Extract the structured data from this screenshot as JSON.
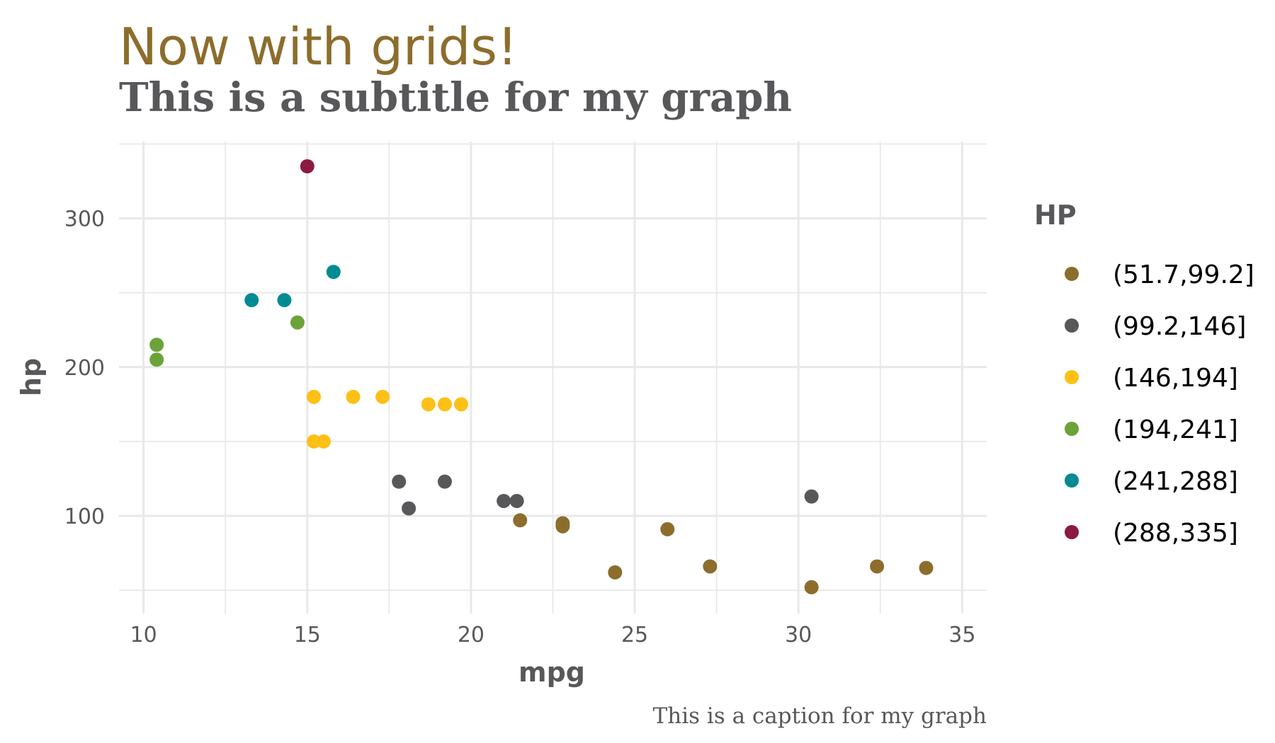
{
  "chart_data": {
    "type": "scatter",
    "title": "Now with grids!",
    "subtitle": "This is a subtitle for my graph",
    "caption": "This is a caption for my graph",
    "xlabel": "mpg",
    "ylabel": "hp",
    "xlim": [
      9.25,
      35.75
    ],
    "ylim": [
      34.35,
      351.65
    ],
    "x_ticks": [
      10,
      15,
      20,
      25,
      30,
      35
    ],
    "y_ticks": [
      100,
      200,
      300
    ],
    "grid": true,
    "legend": {
      "title": "HP",
      "placement": "right",
      "entries": [
        {
          "label": "(51.7,99.2]",
          "color": "#8c6d2c"
        },
        {
          "label": "(99.2,146]",
          "color": "#58585b"
        },
        {
          "label": "(146,194]",
          "color": "#fdc016"
        },
        {
          "label": "(194,241]",
          "color": "#6ba33a"
        },
        {
          "label": "(241,288]",
          "color": "#008b93"
        },
        {
          "label": "(288,335]",
          "color": "#8b1a40"
        }
      ]
    },
    "colors": {
      "title": "#8c6d2c",
      "text": "#58585b",
      "grid": "#e8e8e8"
    },
    "series": [
      {
        "name": "(51.7,99.2]",
        "points": [
          [
            21.5,
            97
          ],
          [
            22.8,
            95
          ],
          [
            22.8,
            93
          ],
          [
            24.4,
            62
          ],
          [
            26.0,
            91
          ],
          [
            27.3,
            66
          ],
          [
            30.4,
            52
          ],
          [
            32.4,
            66
          ],
          [
            33.9,
            65
          ]
        ]
      },
      {
        "name": "(99.2,146]",
        "points": [
          [
            17.8,
            123
          ],
          [
            18.1,
            105
          ],
          [
            19.2,
            123
          ],
          [
            21.0,
            110
          ],
          [
            21.4,
            110
          ],
          [
            30.4,
            113
          ]
        ]
      },
      {
        "name": "(146,194]",
        "points": [
          [
            15.2,
            180
          ],
          [
            15.2,
            150
          ],
          [
            15.5,
            150
          ],
          [
            16.4,
            180
          ],
          [
            17.3,
            180
          ],
          [
            18.7,
            175
          ],
          [
            19.2,
            175
          ],
          [
            19.7,
            175
          ]
        ]
      },
      {
        "name": "(194,241]",
        "points": [
          [
            10.4,
            215
          ],
          [
            10.4,
            205
          ],
          [
            14.7,
            230
          ]
        ]
      },
      {
        "name": "(241,288]",
        "points": [
          [
            13.3,
            245
          ],
          [
            14.3,
            245
          ],
          [
            15.8,
            264
          ]
        ]
      },
      {
        "name": "(288,335]",
        "points": [
          [
            15.0,
            335
          ]
        ]
      }
    ]
  }
}
